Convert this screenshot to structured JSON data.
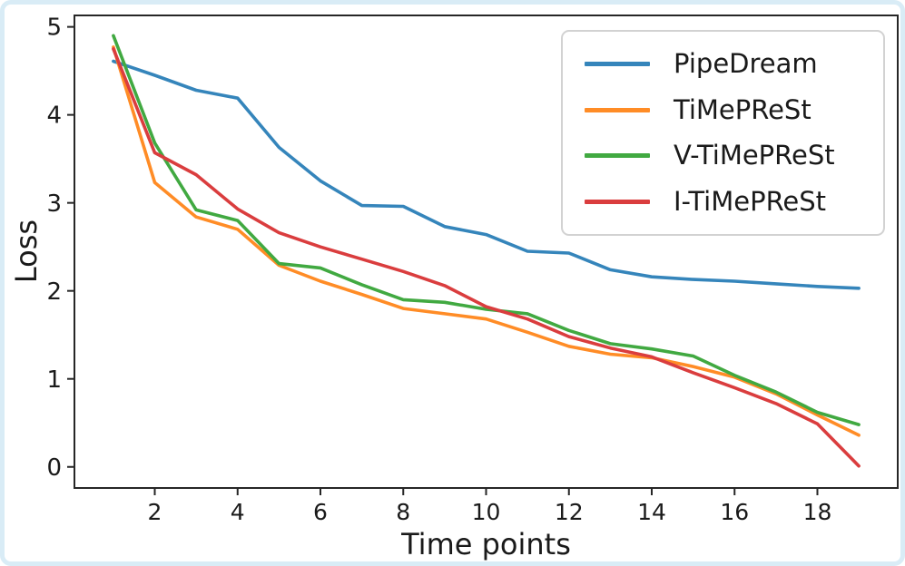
{
  "figure": {
    "background_color": "#ffffff",
    "border_color": "#d9ecf6",
    "axis_color": "#262626",
    "text_color": "#1a1a1a"
  },
  "chart_data": {
    "type": "line",
    "title": "",
    "xlabel": "Time points",
    "ylabel": "Loss",
    "grid": false,
    "legend_position": "upper right",
    "xlim": [
      0.06,
      19.94
    ],
    "ylim": [
      -0.24,
      5.13
    ],
    "x_ticks": [
      2,
      4,
      6,
      8,
      10,
      12,
      14,
      16,
      18
    ],
    "y_ticks": [
      0,
      1,
      2,
      3,
      4,
      5
    ],
    "x": [
      1,
      2,
      3,
      4,
      5,
      6,
      7,
      8,
      9,
      10,
      11,
      12,
      13,
      14,
      15,
      16,
      17,
      18,
      19
    ],
    "series": [
      {
        "name": "PipeDream",
        "color": "#3585bb",
        "values": [
          4.61,
          4.45,
          4.28,
          4.19,
          3.63,
          3.25,
          2.97,
          2.96,
          2.73,
          2.64,
          2.45,
          2.43,
          2.24,
          2.16,
          2.13,
          2.11,
          2.08,
          2.05,
          2.03
        ]
      },
      {
        "name": "TiMePReSt",
        "color": "#ff8c26",
        "values": [
          4.77,
          3.23,
          2.84,
          2.7,
          2.29,
          2.11,
          1.96,
          1.8,
          1.74,
          1.68,
          1.53,
          1.37,
          1.28,
          1.24,
          1.14,
          1.02,
          0.83,
          0.59,
          0.36
        ]
      },
      {
        "name": "V-TiMePReSt",
        "color": "#41a941",
        "values": [
          4.9,
          3.68,
          2.92,
          2.8,
          2.31,
          2.26,
          2.07,
          1.9,
          1.87,
          1.79,
          1.74,
          1.55,
          1.4,
          1.34,
          1.26,
          1.04,
          0.85,
          0.62,
          0.48
        ]
      },
      {
        "name": "I-TiMePReSt",
        "color": "#da3d3e",
        "values": [
          4.75,
          3.57,
          3.32,
          2.93,
          2.66,
          2.5,
          2.36,
          2.22,
          2.06,
          1.82,
          1.68,
          1.48,
          1.35,
          1.25,
          1.07,
          0.9,
          0.72,
          0.49,
          0.01
        ]
      }
    ]
  }
}
